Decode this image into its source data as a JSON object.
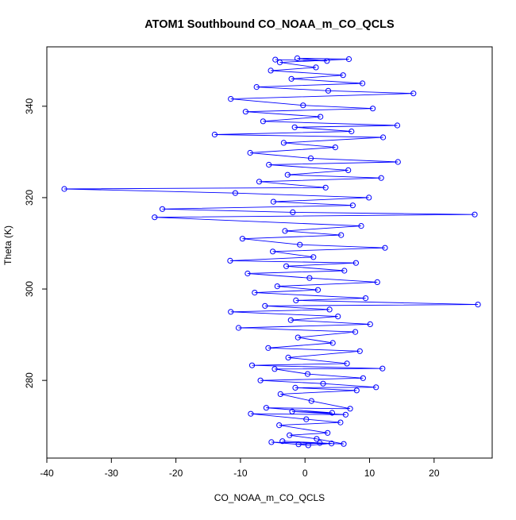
{
  "chart_data": {
    "type": "scatter",
    "title": "ATOM1 Southbound CO_NOAA_m_CO_QCLS",
    "xlabel": "CO_NOAA_m_CO_QCLS",
    "ylabel": "Theta (K)",
    "xlim": [
      -40,
      29
    ],
    "ylim": [
      263,
      353
    ],
    "xticks": [
      -40,
      -30,
      -20,
      -10,
      0,
      10,
      20
    ],
    "yticks": [
      280,
      300,
      320,
      340
    ],
    "grid": false,
    "legend": "none",
    "marker": "open-circle",
    "connected": true,
    "color": "#0000ff",
    "series": [
      {
        "values": [
          [
            -1.0,
            266.0
          ],
          [
            2.3,
            266.3
          ],
          [
            -3.5,
            266.7
          ],
          [
            4.1,
            266.2
          ],
          [
            0.5,
            265.8
          ],
          [
            -5.2,
            266.5
          ],
          [
            6.0,
            266.1
          ],
          [
            1.8,
            267.2
          ],
          [
            -2.4,
            268.0
          ],
          [
            3.5,
            268.5
          ],
          [
            -4.0,
            270.2
          ],
          [
            5.5,
            270.8
          ],
          [
            0.2,
            271.5
          ],
          [
            -8.4,
            272.7
          ],
          [
            6.3,
            272.5
          ],
          [
            -2.0,
            273.2
          ],
          [
            4.2,
            272.9
          ],
          [
            -6.0,
            274.0
          ],
          [
            7.0,
            273.8
          ],
          [
            1.0,
            275.5
          ],
          [
            -3.8,
            277.0
          ],
          [
            8.0,
            277.8
          ],
          [
            -1.5,
            278.4
          ],
          [
            11.0,
            278.5
          ],
          [
            2.8,
            279.3
          ],
          [
            -6.9,
            280.0
          ],
          [
            9.0,
            280.5
          ],
          [
            0.4,
            281.4
          ],
          [
            -4.7,
            282.5
          ],
          [
            12.0,
            282.6
          ],
          [
            -8.2,
            283.3
          ],
          [
            6.5,
            283.7
          ],
          [
            -2.6,
            285.0
          ],
          [
            8.5,
            286.4
          ],
          [
            -5.7,
            287.1
          ],
          [
            4.3,
            288.2
          ],
          [
            -1.1,
            289.4
          ],
          [
            7.8,
            290.6
          ],
          [
            -10.3,
            291.5
          ],
          [
            10.1,
            292.3
          ],
          [
            -2.2,
            293.2
          ],
          [
            5.1,
            294.0
          ],
          [
            -11.5,
            295.0
          ],
          [
            3.8,
            295.5
          ],
          [
            -6.2,
            296.3
          ],
          [
            26.8,
            296.6
          ],
          [
            -1.4,
            297.5
          ],
          [
            9.4,
            298.0
          ],
          [
            -7.8,
            299.2
          ],
          [
            2.0,
            299.8
          ],
          [
            -4.3,
            300.6
          ],
          [
            11.2,
            301.5
          ],
          [
            0.7,
            302.4
          ],
          [
            -8.9,
            303.4
          ],
          [
            6.1,
            304.0
          ],
          [
            -2.9,
            305.0
          ],
          [
            7.9,
            305.7
          ],
          [
            -11.6,
            306.2
          ],
          [
            1.3,
            307.0
          ],
          [
            -5.0,
            308.2
          ],
          [
            12.4,
            309.0
          ],
          [
            -0.8,
            309.7
          ],
          [
            -9.7,
            311.0
          ],
          [
            5.6,
            311.8
          ],
          [
            -3.1,
            312.7
          ],
          [
            8.7,
            313.8
          ],
          [
            -23.3,
            315.7
          ],
          [
            26.3,
            316.3
          ],
          [
            -1.9,
            316.8
          ],
          [
            -22.1,
            317.5
          ],
          [
            7.4,
            318.3
          ],
          [
            -4.9,
            319.1
          ],
          [
            9.9,
            320.0
          ],
          [
            -10.8,
            321.0
          ],
          [
            -37.3,
            321.9
          ],
          [
            3.2,
            322.2
          ],
          [
            -7.1,
            323.5
          ],
          [
            11.8,
            324.3
          ],
          [
            -2.7,
            325.0
          ],
          [
            6.7,
            326.0
          ],
          [
            -5.6,
            327.2
          ],
          [
            14.4,
            327.8
          ],
          [
            0.9,
            328.6
          ],
          [
            -8.5,
            329.8
          ],
          [
            4.7,
            331.0
          ],
          [
            -3.3,
            332.0
          ],
          [
            12.1,
            333.2
          ],
          [
            -14.0,
            333.8
          ],
          [
            7.2,
            334.5
          ],
          [
            -1.6,
            335.4
          ],
          [
            14.3,
            335.8
          ],
          [
            -6.5,
            336.7
          ],
          [
            2.4,
            337.7
          ],
          [
            -9.2,
            338.8
          ],
          [
            10.5,
            339.5
          ],
          [
            -0.3,
            340.2
          ],
          [
            -11.5,
            341.6
          ],
          [
            16.8,
            342.8
          ],
          [
            3.6,
            343.4
          ],
          [
            -7.5,
            344.2
          ],
          [
            8.9,
            345.0
          ],
          [
            -2.1,
            346.0
          ],
          [
            5.9,
            346.8
          ],
          [
            -5.3,
            347.8
          ],
          [
            1.7,
            348.5
          ],
          [
            -3.9,
            349.6
          ],
          [
            6.8,
            350.3
          ],
          [
            -1.2,
            350.5
          ],
          [
            3.4,
            349.9
          ],
          [
            -4.6,
            350.2
          ]
        ]
      }
    ]
  }
}
